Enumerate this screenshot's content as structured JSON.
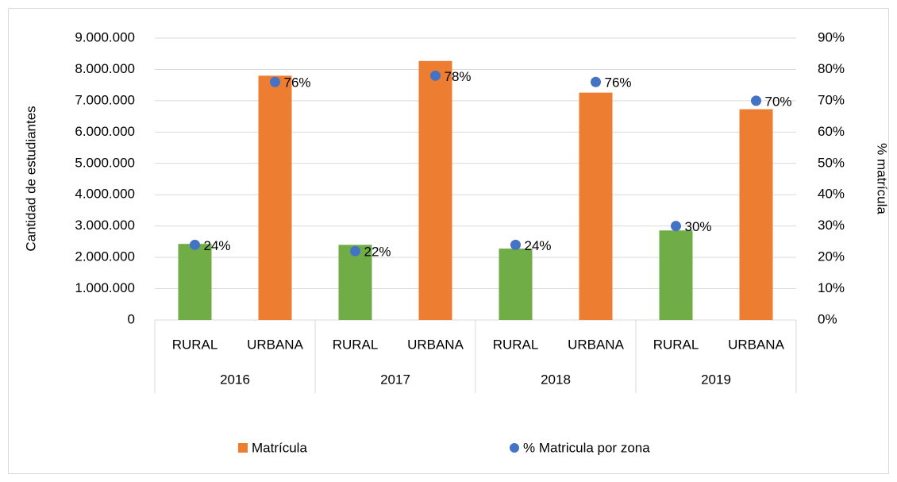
{
  "chart_data": {
    "type": "bar",
    "categories": [
      "RURAL",
      "URBANA",
      "RURAL",
      "URBANA",
      "RURAL",
      "URBANA",
      "RURAL",
      "URBANA"
    ],
    "groups": [
      "2016",
      "2017",
      "2018",
      "2019"
    ],
    "y_label": "Cantidad de estudiantes",
    "y2_label": "% matrícula",
    "series": [
      {
        "name": "Matrícula",
        "type": "bar",
        "color": "#ed7d31",
        "colors": [
          "#70ad47",
          "#ed7d31",
          "#70ad47",
          "#ed7d31",
          "#70ad47",
          "#ed7d31",
          "#70ad47",
          "#ed7d31"
        ],
        "values": [
          2430000,
          7800000,
          2400000,
          8270000,
          2280000,
          7260000,
          2860000,
          6730000
        ]
      },
      {
        "name": "% Matricula por zona",
        "type": "scatter",
        "axis": "y2",
        "color": "#4472c4",
        "values": [
          24,
          76,
          22,
          78,
          24,
          76,
          30,
          70
        ],
        "value_labels": [
          "24%",
          "76%",
          "22%",
          "78%",
          "24%",
          "76%",
          "30%",
          "70%"
        ]
      }
    ],
    "ylim": [
      0,
      9000000
    ],
    "yticks": [
      0,
      {
        "value": 1000000,
        "label": "1.000.000"
      },
      {
        "value": 2000000,
        "label": "2.000.000"
      },
      {
        "value": 3000000,
        "label": "3.000.000"
      },
      {
        "value": 4000000,
        "label": "4.000.000"
      },
      {
        "value": 5000000,
        "label": "5.000.000"
      },
      {
        "value": 6000000,
        "label": "6.000.000"
      },
      {
        "value": 7000000,
        "label": "7.000.000"
      },
      {
        "value": 8000000,
        "label": "8.000.000"
      },
      {
        "value": 9000000,
        "label": "9.000.000"
      }
    ],
    "y2lim": [
      0,
      90
    ],
    "y2ticks": [
      {
        "value": 0,
        "label": "0%"
      },
      {
        "value": 10,
        "label": "10%"
      },
      {
        "value": 20,
        "label": "20%"
      },
      {
        "value": 30,
        "label": "30%"
      },
      {
        "value": 40,
        "label": "40%"
      },
      {
        "value": 50,
        "label": "50%"
      },
      {
        "value": 60,
        "label": "60%"
      },
      {
        "value": 70,
        "label": "70%"
      },
      {
        "value": 80,
        "label": "80%"
      },
      {
        "value": 90,
        "label": "90%"
      }
    ],
    "grid": true,
    "legend": "bottom"
  }
}
